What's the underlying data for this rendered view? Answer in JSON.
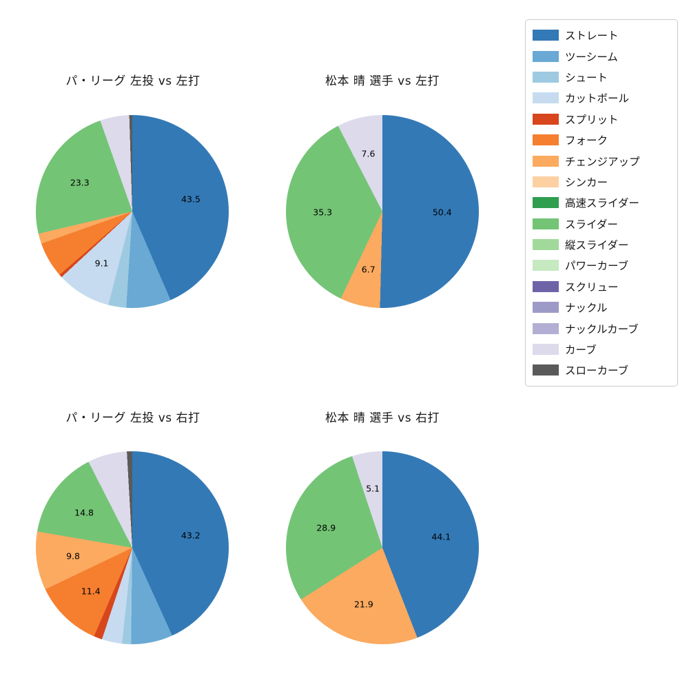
{
  "legend": {
    "items": [
      {
        "label": "ストレート",
        "color": "#3379b6"
      },
      {
        "label": "ツーシーム",
        "color": "#69a9d4"
      },
      {
        "label": "シュート",
        "color": "#9ecae1"
      },
      {
        "label": "カットボール",
        "color": "#c6dbef"
      },
      {
        "label": "スプリット",
        "color": "#d7461c"
      },
      {
        "label": "フォーク",
        "color": "#f57f2f"
      },
      {
        "label": "チェンジアップ",
        "color": "#fbaa60"
      },
      {
        "label": "シンカー",
        "color": "#fdd0a2"
      },
      {
        "label": "高速スライダー",
        "color": "#2f9e4f"
      },
      {
        "label": "スライダー",
        "color": "#74c476"
      },
      {
        "label": "縦スライダー",
        "color": "#a1d99b"
      },
      {
        "label": "パワーカーブ",
        "color": "#c7e9c0"
      },
      {
        "label": "スクリュー",
        "color": "#6f63a8"
      },
      {
        "label": "ナックル",
        "color": "#9e9ac8"
      },
      {
        "label": "ナックルカーブ",
        "color": "#b3aed3"
      },
      {
        "label": "カーブ",
        "color": "#dcdaeb"
      },
      {
        "label": "スローカーブ",
        "color": "#5a5a5a"
      }
    ]
  },
  "chart_data": [
    {
      "type": "pie",
      "title": "パ・リーグ 左投 vs 左打",
      "start_angle": "top",
      "direction": "clockwise",
      "units": "percent",
      "slices": [
        {
          "name": "ストレート",
          "value": 43.5,
          "show_label": true
        },
        {
          "name": "ツーシーム",
          "value": 7.5,
          "show_label": false
        },
        {
          "name": "シュート",
          "value": 3.0,
          "show_label": false
        },
        {
          "name": "カットボール",
          "value": 9.1,
          "show_label": true
        },
        {
          "name": "スプリット",
          "value": 0.5,
          "show_label": false
        },
        {
          "name": "フォーク",
          "value": 6.0,
          "show_label": false
        },
        {
          "name": "チェンジアップ",
          "value": 1.7,
          "show_label": false
        },
        {
          "name": "スライダー",
          "value": 23.3,
          "show_label": true
        },
        {
          "name": "カーブ",
          "value": 4.9,
          "show_label": false
        },
        {
          "name": "スローカーブ",
          "value": 0.5,
          "show_label": false
        }
      ]
    },
    {
      "type": "pie",
      "title": "松本 晴 選手 vs 左打",
      "start_angle": "top",
      "direction": "clockwise",
      "units": "percent",
      "slices": [
        {
          "name": "ストレート",
          "value": 50.4,
          "show_label": true
        },
        {
          "name": "チェンジアップ",
          "value": 6.7,
          "show_label": true
        },
        {
          "name": "スライダー",
          "value": 35.3,
          "show_label": true
        },
        {
          "name": "カーブ",
          "value": 7.6,
          "show_label": true
        }
      ]
    },
    {
      "type": "pie",
      "title": "パ・リーグ 左投 vs 右打",
      "start_angle": "top",
      "direction": "clockwise",
      "units": "percent",
      "slices": [
        {
          "name": "ストレート",
          "value": 43.2,
          "show_label": true
        },
        {
          "name": "ツーシーム",
          "value": 7.0,
          "show_label": false
        },
        {
          "name": "シュート",
          "value": 1.5,
          "show_label": false
        },
        {
          "name": "カットボール",
          "value": 3.4,
          "show_label": false
        },
        {
          "name": "スプリット",
          "value": 1.4,
          "show_label": false
        },
        {
          "name": "フォーク",
          "value": 11.4,
          "show_label": true
        },
        {
          "name": "チェンジアップ",
          "value": 9.8,
          "show_label": true
        },
        {
          "name": "スライダー",
          "value": 14.8,
          "show_label": true
        },
        {
          "name": "カーブ",
          "value": 6.6,
          "show_label": false
        },
        {
          "name": "スローカーブ",
          "value": 0.9,
          "show_label": false
        }
      ]
    },
    {
      "type": "pie",
      "title": "松本 晴 選手 vs 右打",
      "start_angle": "top",
      "direction": "clockwise",
      "units": "percent",
      "slices": [
        {
          "name": "ストレート",
          "value": 44.1,
          "show_label": true
        },
        {
          "name": "チェンジアップ",
          "value": 21.9,
          "show_label": true
        },
        {
          "name": "スライダー",
          "value": 28.9,
          "show_label": true
        },
        {
          "name": "カーブ",
          "value": 5.1,
          "show_label": true
        }
      ]
    }
  ]
}
